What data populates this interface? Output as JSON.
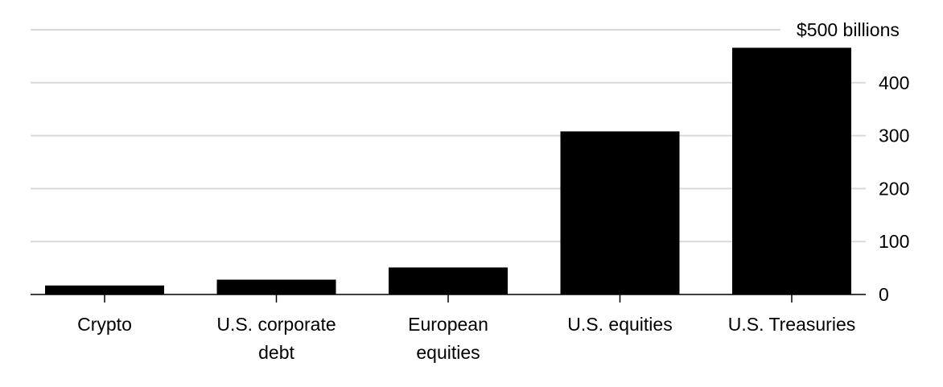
{
  "chart_data": {
    "type": "bar",
    "categories": [
      [
        "Crypto"
      ],
      [
        "U.S. corporate",
        "debt"
      ],
      [
        "European",
        "equities"
      ],
      [
        "U.S. equities"
      ],
      [
        "U.S. Treasuries"
      ]
    ],
    "values": [
      17,
      28,
      51,
      308,
      466
    ],
    "ylim": [
      0,
      500
    ],
    "yticks": [
      0,
      100,
      200,
      300,
      400,
      500
    ],
    "ytick_labels": [
      "0",
      "100",
      "200",
      "300",
      "400",
      "$500 billions"
    ],
    "grid": true,
    "axis_side": "right"
  }
}
